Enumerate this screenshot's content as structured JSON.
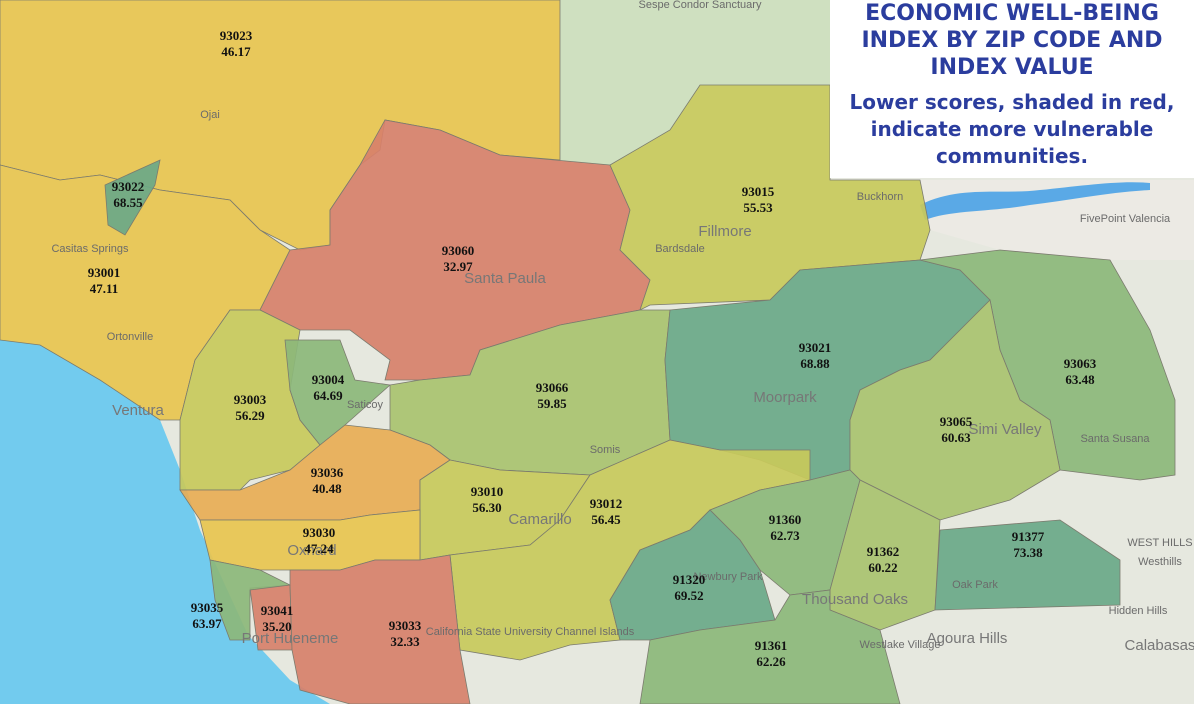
{
  "header": {
    "title_lines": [
      "ECONOMIC WELL-BEING",
      "INDEX BY ZIP CODE AND",
      "INDEX VALUE"
    ],
    "subtitle_lines": [
      "Lower scores, shaded in red,",
      "indicate more vulnerable",
      "communities."
    ]
  },
  "zones": [
    {
      "zip": "93023",
      "value": "46.17"
    },
    {
      "zip": "93001",
      "value": "47.11"
    },
    {
      "zip": "93022",
      "value": "68.55"
    },
    {
      "zip": "93060",
      "value": "32.97"
    },
    {
      "zip": "93015",
      "value": "55.53"
    },
    {
      "zip": "93003",
      "value": "56.29"
    },
    {
      "zip": "93004",
      "value": "64.69"
    },
    {
      "zip": "93066",
      "value": "59.85"
    },
    {
      "zip": "93036",
      "value": "40.48"
    },
    {
      "zip": "93021",
      "value": "68.88"
    },
    {
      "zip": "93063",
      "value": "63.48"
    },
    {
      "zip": "93065",
      "value": "60.63"
    },
    {
      "zip": "93010",
      "value": "56.30"
    },
    {
      "zip": "93012",
      "value": "56.45"
    },
    {
      "zip": "93030",
      "value": "47.24"
    },
    {
      "zip": "93041",
      "value": "35.20"
    },
    {
      "zip": "93035",
      "value": "63.97"
    },
    {
      "zip": "93033",
      "value": "32.33"
    },
    {
      "zip": "91360",
      "value": "62.73"
    },
    {
      "zip": "91320",
      "value": "69.52"
    },
    {
      "zip": "91362",
      "value": "60.22"
    },
    {
      "zip": "91377",
      "value": "73.38"
    },
    {
      "zip": "91361",
      "value": "62.26"
    }
  ],
  "places": [
    "Sespe Condor Sanctuary",
    "Ojai",
    "Casitas Springs",
    "Ortonville",
    "Ventura",
    "Saticoy",
    "Santa Paula",
    "Fillmore",
    "Bardsdale",
    "Buckhorn",
    "FivePoint Valencia",
    "Moorpark",
    "Somis",
    "Camarillo",
    "Oxnard",
    "Port Hueneme",
    "California State University Channel Islands",
    "Newbury Park",
    "Thousand Oaks",
    "Oak Park",
    "Simi Valley",
    "Santa Susana",
    "WEST HILLS",
    "Westhills",
    "Hidden Hills",
    "Agoura Hills",
    "Calabasas",
    "Westlake Village"
  ]
}
